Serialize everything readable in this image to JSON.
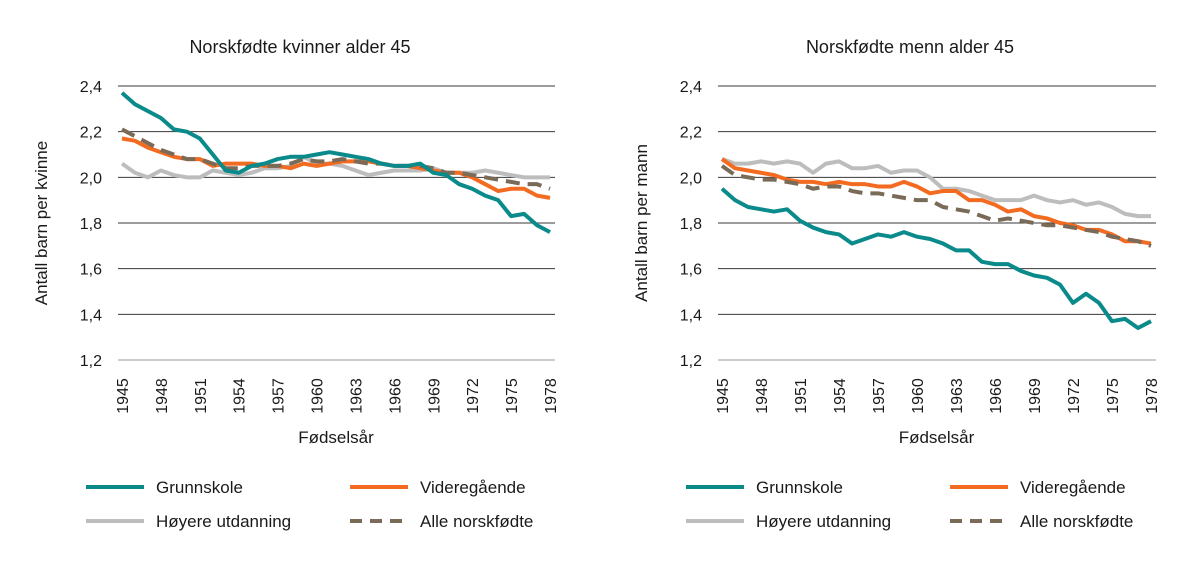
{
  "colors": {
    "Grunnskole": "#0a8a8a",
    "Videregående": "#f26b21",
    "Høyere utdanning": "#bdbdbd",
    "Alle norskfødte": "#7a6a58",
    "grid": "#3a3a3a"
  },
  "chart_data": [
    {
      "type": "line",
      "title": "Norskfødte kvinner alder 45",
      "xlabel": "Fødselsår",
      "ylabel": "Antall barn per kvinne",
      "ylim": [
        1.2,
        2.4
      ],
      "xlim": [
        1945,
        1978
      ],
      "yticks": [
        "1,2",
        "1,4",
        "1,6",
        "1,8",
        "2,0",
        "2,2",
        "2,4"
      ],
      "xticks": [
        "1945",
        "1948",
        "1951",
        "1954",
        "1957",
        "1960",
        "1963",
        "1966",
        "1969",
        "1972",
        "1975",
        "1978"
      ],
      "grid": "horizontal",
      "legend": "bottom",
      "x": [
        1945,
        1946,
        1947,
        1948,
        1949,
        1950,
        1951,
        1952,
        1953,
        1954,
        1955,
        1956,
        1957,
        1958,
        1959,
        1960,
        1961,
        1962,
        1963,
        1964,
        1965,
        1966,
        1967,
        1968,
        1969,
        1970,
        1971,
        1972,
        1973,
        1974,
        1975,
        1976,
        1977,
        1978
      ],
      "series": [
        {
          "name": "Grunnskole",
          "style": "solid",
          "values": [
            2.37,
            2.32,
            2.29,
            2.26,
            2.21,
            2.2,
            2.17,
            2.1,
            2.03,
            2.02,
            2.05,
            2.06,
            2.08,
            2.09,
            2.09,
            2.1,
            2.11,
            2.1,
            2.09,
            2.08,
            2.06,
            2.05,
            2.05,
            2.06,
            2.02,
            2.01,
            1.97,
            1.95,
            1.92,
            1.9,
            1.83,
            1.84,
            1.79,
            1.76
          ]
        },
        {
          "name": "Videregående",
          "style": "solid",
          "values": [
            2.17,
            2.16,
            2.13,
            2.11,
            2.09,
            2.08,
            2.08,
            2.05,
            2.06,
            2.06,
            2.06,
            2.05,
            2.05,
            2.04,
            2.06,
            2.05,
            2.06,
            2.07,
            2.07,
            2.07,
            2.06,
            2.05,
            2.05,
            2.04,
            2.03,
            2.02,
            2.02,
            2.0,
            1.97,
            1.94,
            1.95,
            1.95,
            1.92,
            1.91
          ]
        },
        {
          "name": "Høyere utdanning",
          "style": "solid",
          "values": [
            2.06,
            2.02,
            2.0,
            2.03,
            2.01,
            2.0,
            2.0,
            2.03,
            2.02,
            2.01,
            2.02,
            2.04,
            2.04,
            2.05,
            2.09,
            2.06,
            2.06,
            2.05,
            2.03,
            2.01,
            2.02,
            2.03,
            2.03,
            2.03,
            2.04,
            2.02,
            2.02,
            2.02,
            2.03,
            2.02,
            2.01,
            2.0,
            2.0,
            2.0
          ]
        },
        {
          "name": "Alle norskfødte",
          "style": "dashed",
          "values": [
            2.21,
            2.18,
            2.15,
            2.12,
            2.1,
            2.08,
            2.08,
            2.06,
            2.04,
            2.04,
            2.05,
            2.05,
            2.05,
            2.06,
            2.08,
            2.07,
            2.07,
            2.08,
            2.07,
            2.06,
            2.06,
            2.05,
            2.05,
            2.05,
            2.04,
            2.02,
            2.02,
            2.01,
            2.0,
            1.99,
            1.98,
            1.97,
            1.97,
            1.95
          ]
        }
      ]
    },
    {
      "type": "line",
      "title": "Norskfødte menn alder 45",
      "xlabel": "Fødselsår",
      "ylabel": "Antall barn per mann",
      "ylim": [
        1.2,
        2.4
      ],
      "xlim": [
        1945,
        1978
      ],
      "yticks": [
        "1,2",
        "1,4",
        "1,6",
        "1,8",
        "2,0",
        "2,2",
        "2,4"
      ],
      "xticks": [
        "1945",
        "1948",
        "1951",
        "1954",
        "1957",
        "1960",
        "1963",
        "1966",
        "1969",
        "1972",
        "1975",
        "1978"
      ],
      "grid": "horizontal",
      "legend": "bottom",
      "x": [
        1945,
        1946,
        1947,
        1948,
        1949,
        1950,
        1951,
        1952,
        1953,
        1954,
        1955,
        1956,
        1957,
        1958,
        1959,
        1960,
        1961,
        1962,
        1963,
        1964,
        1965,
        1966,
        1967,
        1968,
        1969,
        1970,
        1971,
        1972,
        1973,
        1974,
        1975,
        1976,
        1977,
        1978
      ],
      "series": [
        {
          "name": "Grunnskole",
          "style": "solid",
          "values": [
            1.95,
            1.9,
            1.87,
            1.86,
            1.85,
            1.86,
            1.81,
            1.78,
            1.76,
            1.75,
            1.71,
            1.73,
            1.75,
            1.74,
            1.76,
            1.74,
            1.73,
            1.71,
            1.68,
            1.68,
            1.63,
            1.62,
            1.62,
            1.59,
            1.57,
            1.56,
            1.53,
            1.45,
            1.49,
            1.45,
            1.37,
            1.38,
            1.34,
            1.37
          ]
        },
        {
          "name": "Videregående",
          "style": "solid",
          "values": [
            2.08,
            2.04,
            2.03,
            2.02,
            2.01,
            1.99,
            1.98,
            1.98,
            1.97,
            1.98,
            1.97,
            1.97,
            1.96,
            1.96,
            1.98,
            1.96,
            1.93,
            1.94,
            1.94,
            1.9,
            1.9,
            1.88,
            1.85,
            1.86,
            1.83,
            1.82,
            1.8,
            1.79,
            1.77,
            1.77,
            1.75,
            1.72,
            1.72,
            1.71
          ]
        },
        {
          "name": "Høyere utdanning",
          "style": "solid",
          "values": [
            2.08,
            2.06,
            2.06,
            2.07,
            2.06,
            2.07,
            2.06,
            2.02,
            2.06,
            2.07,
            2.04,
            2.04,
            2.05,
            2.02,
            2.03,
            2.03,
            2.0,
            1.95,
            1.95,
            1.94,
            1.92,
            1.9,
            1.9,
            1.9,
            1.92,
            1.9,
            1.89,
            1.9,
            1.88,
            1.89,
            1.87,
            1.84,
            1.83,
            1.83
          ]
        },
        {
          "name": "Alle norskfødte",
          "style": "dashed",
          "values": [
            2.05,
            2.01,
            2.0,
            1.99,
            1.99,
            1.98,
            1.97,
            1.95,
            1.96,
            1.96,
            1.94,
            1.93,
            1.93,
            1.92,
            1.91,
            1.9,
            1.9,
            1.87,
            1.86,
            1.85,
            1.83,
            1.81,
            1.82,
            1.81,
            1.8,
            1.79,
            1.79,
            1.78,
            1.77,
            1.76,
            1.74,
            1.73,
            1.72,
            1.7
          ]
        }
      ]
    }
  ]
}
